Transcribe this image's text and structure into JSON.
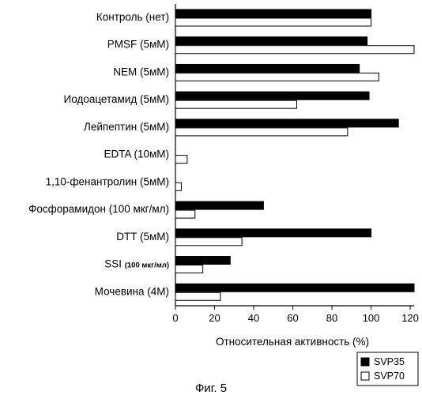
{
  "chart_data": {
    "type": "bar",
    "orientation": "horizontal",
    "categories": [
      "Контроль (нет)",
      "PMSF (5мМ)",
      "NEM (5мМ)",
      "Иодоацетамид (5мМ)",
      "Лейпептин (5мМ)",
      "EDTA (10мМ)",
      "1,10-фенантролин (5мМ)",
      "Фосфорамидон (100 мкг/мл)",
      "DTT (5мМ)",
      "SSI",
      "Мочевина (4М)"
    ],
    "category_suffix": {
      "SSI": "(100 мкг/мл)"
    },
    "series": [
      {
        "name": "SVP35",
        "fill": "#000000",
        "values": [
          100,
          98,
          94,
          99,
          114,
          0,
          0,
          45,
          100,
          28,
          122
        ]
      },
      {
        "name": "SVP70",
        "fill": "#ffffff",
        "values": [
          100,
          122,
          104,
          62,
          88,
          6,
          3,
          10,
          34,
          14,
          23
        ]
      }
    ],
    "xlabel": "Относительная активность (%)",
    "xlim": [
      0,
      122
    ],
    "xticks": [
      0,
      20,
      40,
      60,
      80,
      100,
      120
    ],
    "legend_position": "bottom-right",
    "grid": false
  },
  "caption": "Фиг. 5"
}
